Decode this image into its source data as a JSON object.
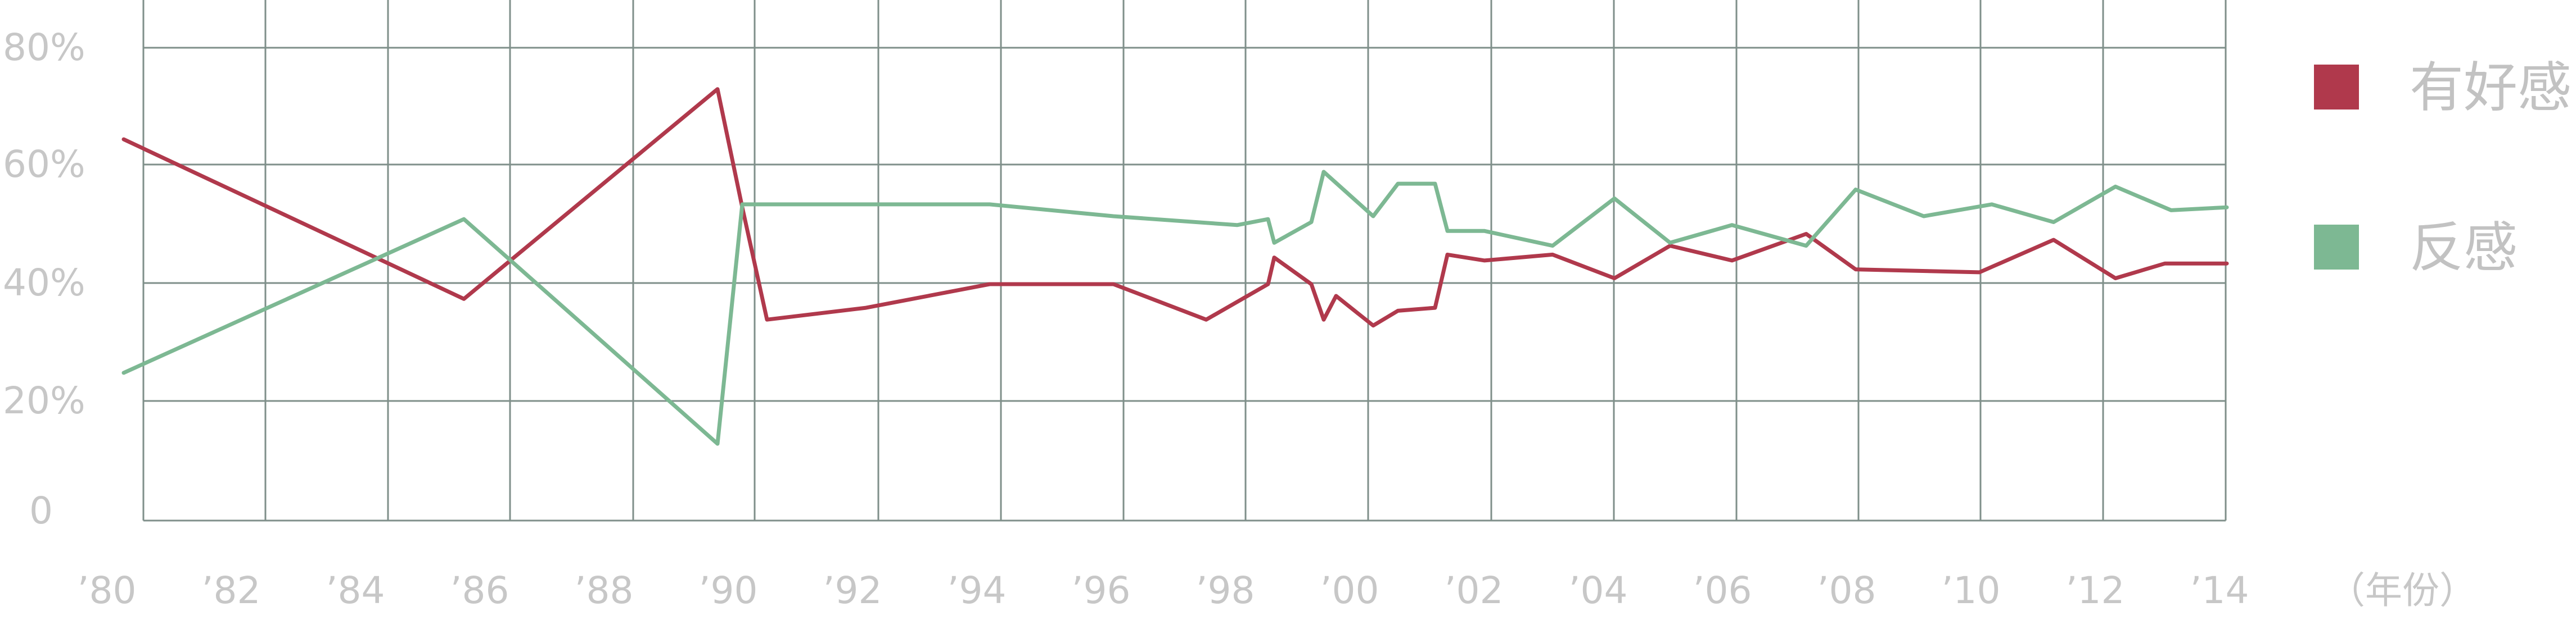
{
  "chart_data": {
    "type": "line",
    "x_unit_label": "（年份）",
    "x_ticks": [
      "’80",
      "’82",
      "’84",
      "’86",
      "’88",
      "’90",
      "’92",
      "’94",
      "’96",
      "’98",
      "’00",
      "’02",
      "’04",
      "’06",
      "’08",
      "’10",
      "’12",
      "’14"
    ],
    "y_ticks": [
      "0",
      "20%",
      "40%",
      "60%",
      "80%"
    ],
    "ylim": [
      0,
      80
    ],
    "xlim": [
      1980,
      2014
    ],
    "grid": true,
    "legend_position": "right",
    "series": [
      {
        "name": "有好感",
        "color": "#b0394c",
        "points": [
          [
            1980.0,
            64.5
          ],
          [
            1985.5,
            37.5
          ],
          [
            1989.6,
            73.0
          ],
          [
            1990.0,
            53.0
          ],
          [
            1990.4,
            34.0
          ],
          [
            1992.0,
            36.0
          ],
          [
            1994.0,
            40.0
          ],
          [
            1996.0,
            40.0
          ],
          [
            1997.5,
            34.0
          ],
          [
            1998.5,
            40.0
          ],
          [
            1998.6,
            44.5
          ],
          [
            1999.2,
            40.0
          ],
          [
            1999.4,
            34.0
          ],
          [
            1999.6,
            38.0
          ],
          [
            2000.2,
            33.0
          ],
          [
            2000.6,
            35.5
          ],
          [
            2001.2,
            36.0
          ],
          [
            2001.4,
            45.0
          ],
          [
            2002.0,
            44.0
          ],
          [
            2003.1,
            45.0
          ],
          [
            2004.1,
            41.0
          ],
          [
            2005.0,
            46.5
          ],
          [
            2006.0,
            44.0
          ],
          [
            2007.2,
            48.5
          ],
          [
            2008.0,
            42.5
          ],
          [
            2010.0,
            42.0
          ],
          [
            2011.2,
            47.5
          ],
          [
            2012.2,
            41.0
          ],
          [
            2013.0,
            43.5
          ],
          [
            2014.0,
            43.5
          ]
        ]
      },
      {
        "name": "反感",
        "color": "#7db893",
        "points": [
          [
            1980.0,
            25.0
          ],
          [
            1985.5,
            51.0
          ],
          [
            1989.6,
            13.0
          ],
          [
            1990.0,
            53.5
          ],
          [
            1994.0,
            53.5
          ],
          [
            1996.0,
            51.5
          ],
          [
            1998.0,
            50.0
          ],
          [
            1998.5,
            51.0
          ],
          [
            1998.6,
            47.0
          ],
          [
            1999.2,
            50.5
          ],
          [
            1999.4,
            59.0
          ],
          [
            2000.2,
            51.5
          ],
          [
            2000.6,
            57.0
          ],
          [
            2001.2,
            57.0
          ],
          [
            2001.4,
            49.0
          ],
          [
            2002.0,
            49.0
          ],
          [
            2003.1,
            46.5
          ],
          [
            2004.1,
            54.5
          ],
          [
            2005.0,
            47.0
          ],
          [
            2006.0,
            50.0
          ],
          [
            2007.2,
            46.5
          ],
          [
            2008.0,
            56.0
          ],
          [
            2009.1,
            51.5
          ],
          [
            2010.2,
            53.5
          ],
          [
            2011.2,
            50.5
          ],
          [
            2012.2,
            56.5
          ],
          [
            2013.1,
            52.5
          ],
          [
            2014.0,
            53.0
          ]
        ]
      }
    ]
  }
}
